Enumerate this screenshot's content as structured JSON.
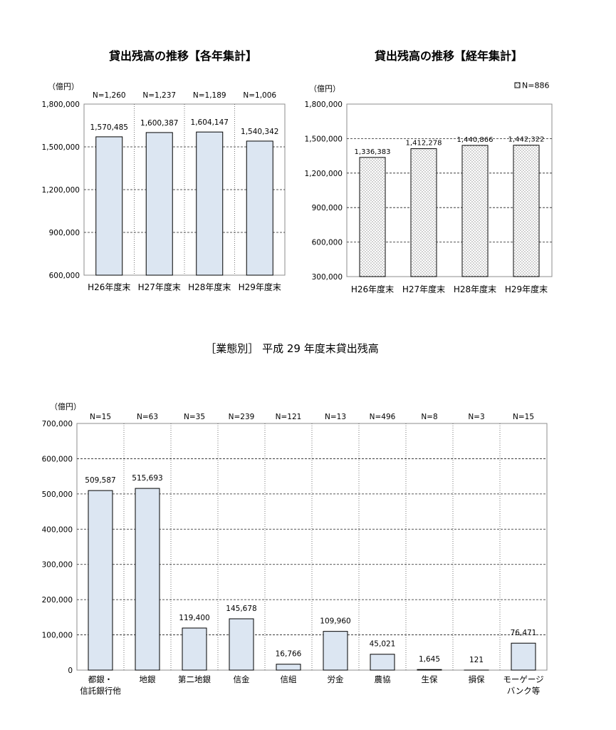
{
  "chart_data": [
    {
      "type": "bar",
      "title": "貸出残高の推移【各年集計】",
      "ylabel": "（億円）",
      "categories": [
        "H26年度末",
        "H27年度末",
        "H28年度末",
        "H29年度末"
      ],
      "n_labels": [
        "N=1,260",
        "N=1,237",
        "N=1,189",
        "N=1,006"
      ],
      "values": [
        1570485,
        1600387,
        1604147,
        1540342
      ],
      "ylim": [
        600000,
        1800000
      ],
      "yticks": [
        600000,
        900000,
        1200000,
        1500000,
        1800000
      ],
      "grid": true,
      "bar_color": "#dce6f2"
    },
    {
      "type": "bar",
      "title": "貸出残高の推移【経年集計】",
      "ylabel": "（億円）",
      "categories": [
        "H26年度末",
        "H27年度末",
        "H28年度末",
        "H29年度末"
      ],
      "series": [
        {
          "name": "N=886",
          "values": [
            1336383,
            1412278,
            1440866,
            1442322
          ]
        }
      ],
      "ylim": [
        300000,
        1800000
      ],
      "yticks": [
        300000,
        600000,
        900000,
        1200000,
        1500000,
        1800000
      ],
      "grid": true,
      "legend": "top-right",
      "bar_color": "#ffffff",
      "bar_pattern": "dotted"
    },
    {
      "type": "bar",
      "title": "［業態別］ 平成 29 年度末貸出残高",
      "ylabel": "（億円）",
      "categories": [
        [
          "都銀・",
          "信託銀行他"
        ],
        "地銀",
        "第二地銀",
        "信金",
        "信組",
        "労金",
        "農協",
        "生保",
        "損保",
        [
          "モーゲージ",
          "バンク等"
        ]
      ],
      "n_labels": [
        "N=15",
        "N=63",
        "N=35",
        "N=239",
        "N=121",
        "N=13",
        "N=496",
        "N=8",
        "N=3",
        "N=15"
      ],
      "values": [
        509587,
        515693,
        119400,
        145678,
        16766,
        109960,
        45021,
        1645,
        121,
        76471
      ],
      "ylim": [
        0,
        700000
      ],
      "yticks": [
        0,
        100000,
        200000,
        300000,
        400000,
        500000,
        600000,
        700000
      ],
      "grid": true,
      "bar_color": "#dce6f2"
    }
  ]
}
